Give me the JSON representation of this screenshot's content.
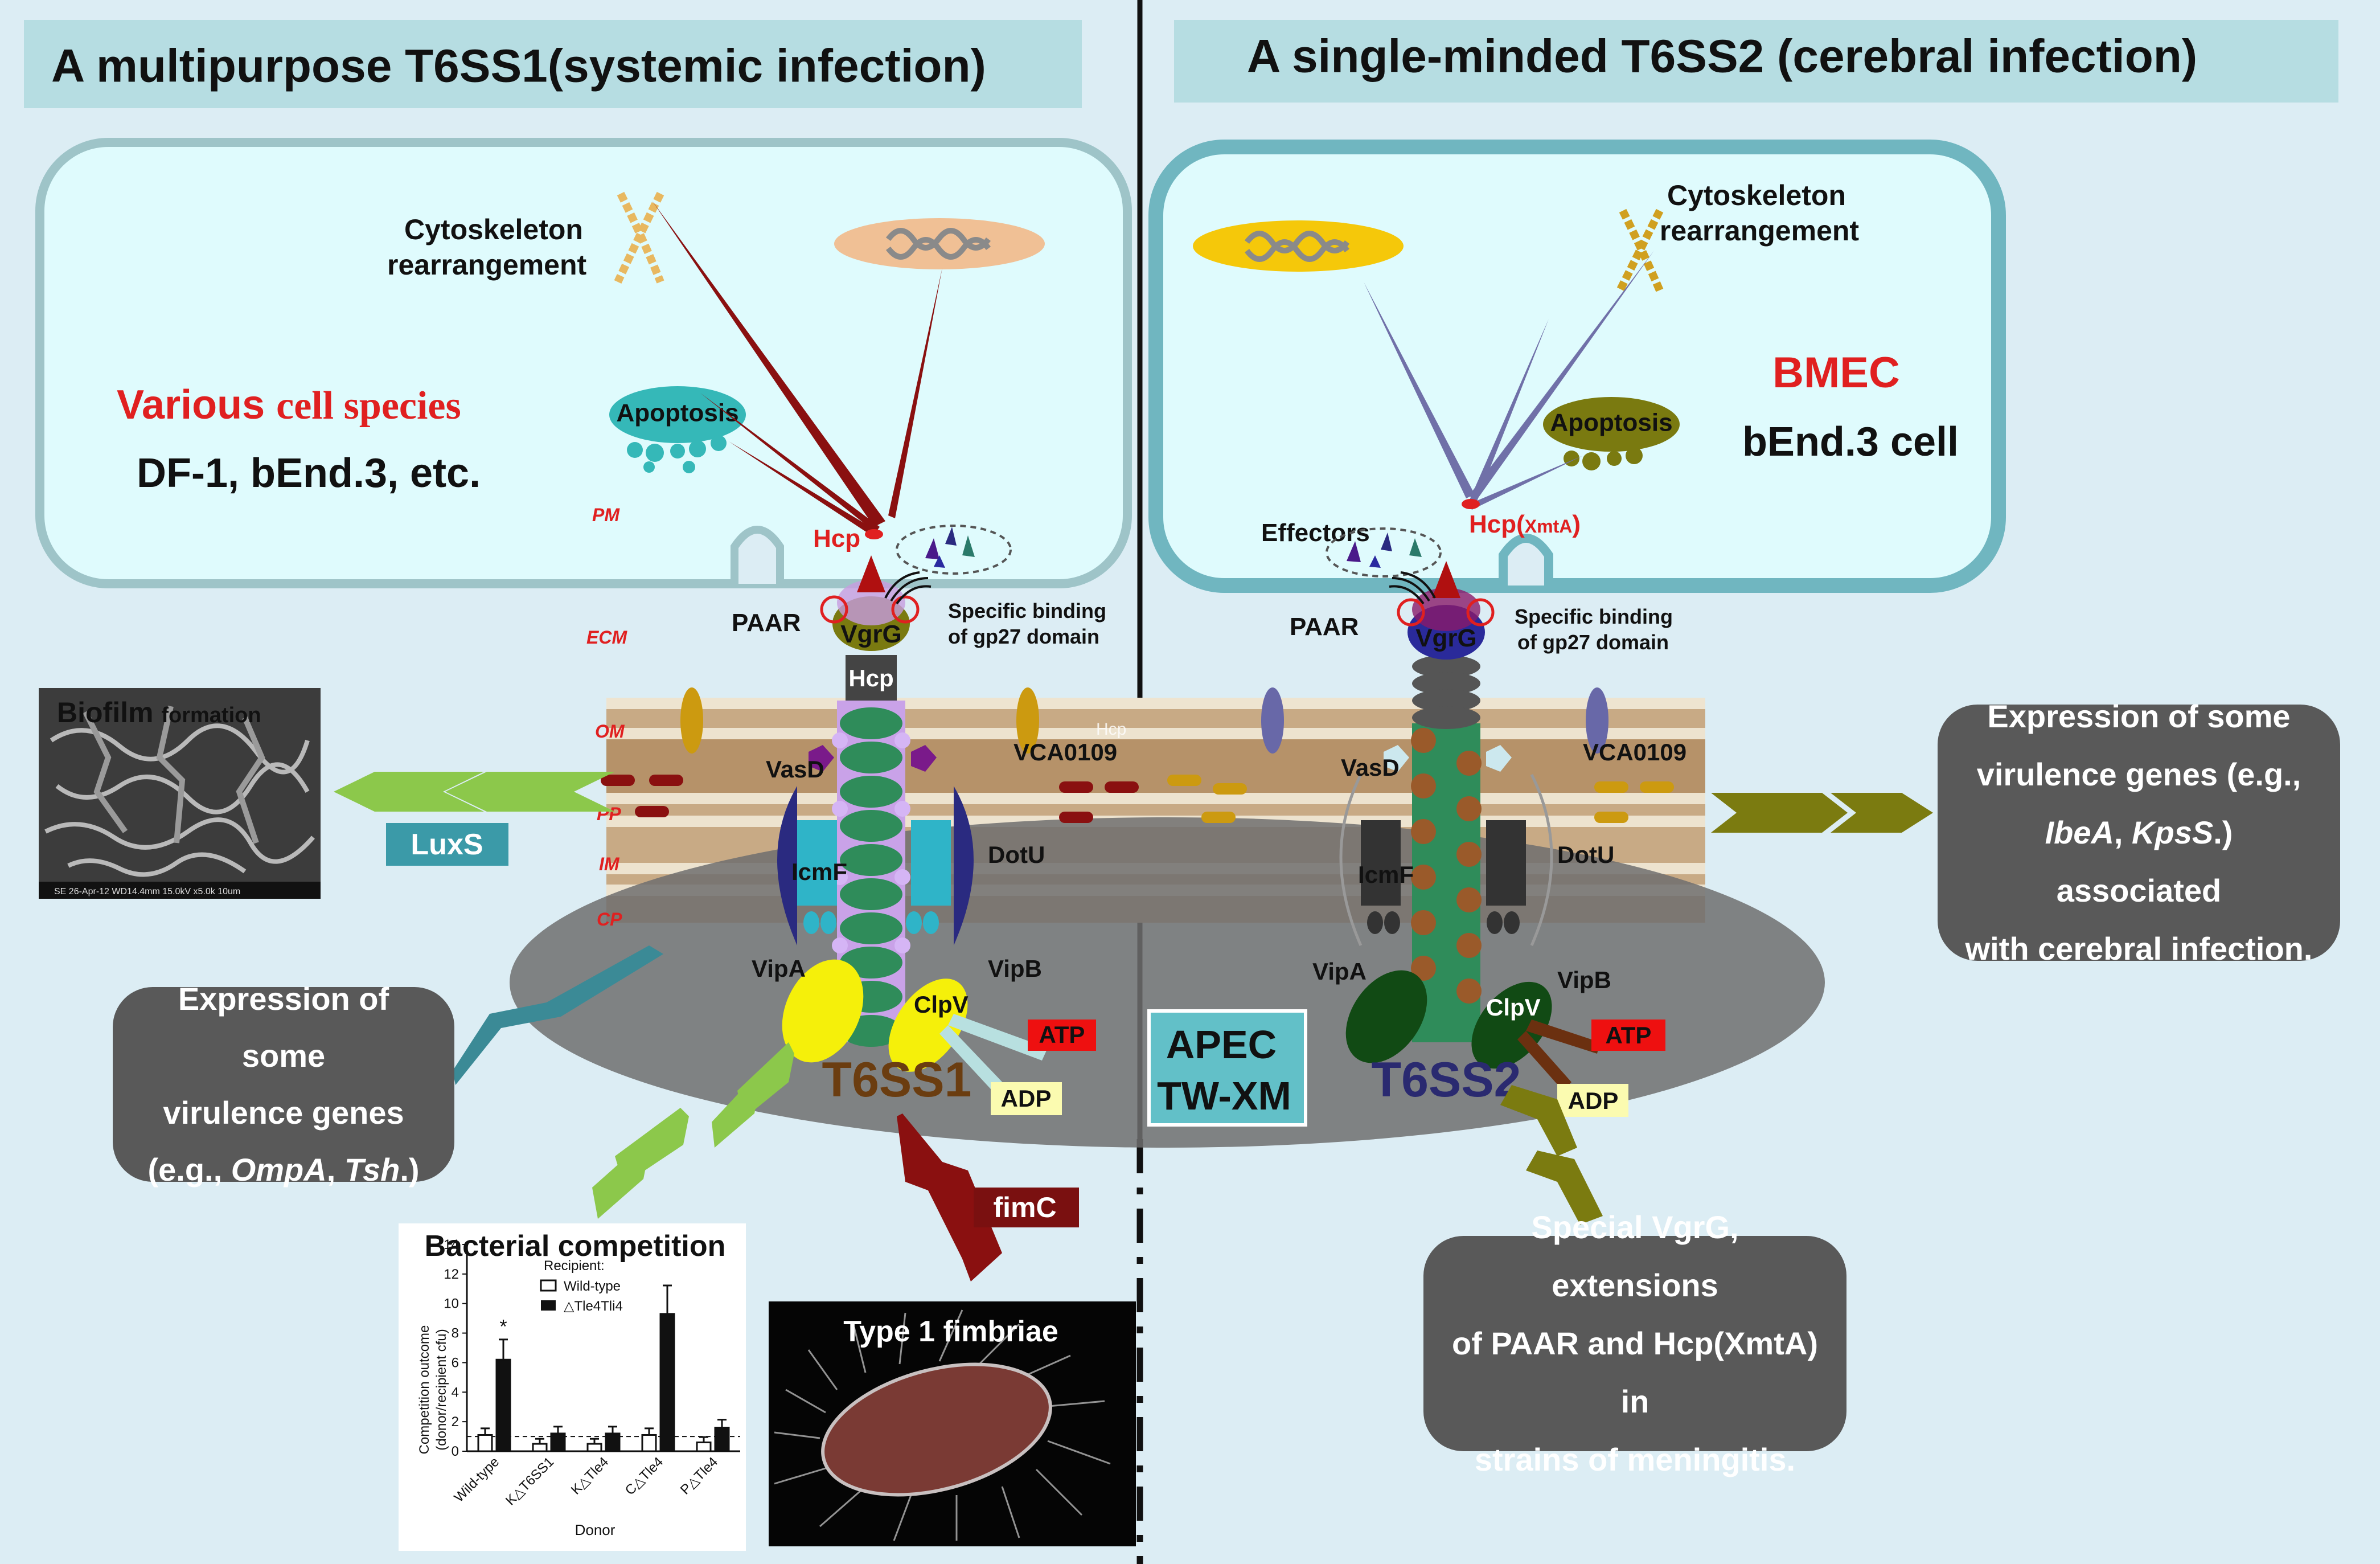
{
  "titles": {
    "left": "A  multipurpose T6SS1(systemic infection)",
    "right": "A  single-minded T6SS2 (cerebral infection)"
  },
  "left_cell": {
    "various": "Various",
    "cell_species": "cell species",
    "lines": "DF-1, bEnd.3, etc.",
    "cytoskeleton1": "Cytoskeleton",
    "cytoskeleton2": "rearrangement",
    "apoptosis": "Apoptosis",
    "hcp": "Hcp"
  },
  "right_cell": {
    "bmec": "BMEC",
    "bend": "bEnd.3 cell",
    "cytoskeleton1": "Cytoskeleton",
    "cytoskeleton2": "rearrangement",
    "apoptosis": "Apoptosis",
    "effectors": "Effectors",
    "hcp": "Hcp(",
    "hcp_sub": "XmtA",
    "hcp_close": ")"
  },
  "layers": {
    "pm": "PM",
    "ecm": "ECM",
    "om": "OM",
    "pp": "PP",
    "im": "IM",
    "cp": "CP"
  },
  "left_machine": {
    "paar": "PAAR",
    "vgrg": "VgrG",
    "hcp": "Hcp",
    "binding1": "Specific binding",
    "binding2": "of gp27 domain",
    "vasd": "VasD",
    "vca": "VCA0109",
    "icmf": "IcmF",
    "dotu": "DotU",
    "vipa": "VipA",
    "vipb": "VipB",
    "clpv": "ClpV",
    "atp": "ATP",
    "adp": "ADP",
    "name": "T6SS1",
    "hcp_faint": "Hcp"
  },
  "right_machine": {
    "paar": "PAAR",
    "vgrg": "VgrG",
    "binding1": "Specific binding",
    "binding2": "of gp27 domain",
    "vasd": "VasD",
    "vca": "VCA0109",
    "icmf": "IcmF",
    "dotu": "DotU",
    "vipa": "VipA",
    "vipb": "VipB",
    "clpv": "ClpV",
    "atp": "ATP",
    "adp": "ADP",
    "name": "T6SS2"
  },
  "strain": {
    "line1": "APEC",
    "line2": "TW-XM"
  },
  "biofilm": {
    "title": "Biofilm",
    "title2": "formation",
    "footer": "SE    26-Apr-12        WD14.4mm 15.0kV x5.0k  10um"
  },
  "luxs": "LuxS",
  "fimc": "fimC",
  "fimbriae": "Type 1 fimbriae",
  "left_box": {
    "l1": "Expression of  some",
    "l2": "virulence genes",
    "l3a": "(e.g., ",
    "l3b": "OmpA",
    "l3c": ", ",
    "l3d": "Tsh",
    "l3e": ".)"
  },
  "right_box": {
    "l1": "Expression of  some",
    "l2": "virulence genes (e.g.,",
    "l3a": "IbeA",
    "l3b": ", ",
    "l3c": "KpsS",
    "l3d": ".) associated",
    "l4": "with cerebral infection."
  },
  "bottom_box": {
    "l1": "Special VgrG, extensions",
    "l2": "of PAAR and Hcp(XmtA) in",
    "l3": "strains of meningitis."
  },
  "competition": {
    "title": "Bacterial competition",
    "recipient": "Recipient:",
    "legend1": "Wild-type",
    "legend2": "△Tle4Tli4",
    "ylabel1": "Competition outcome",
    "ylabel2": "(donor/recipient cfu)",
    "xlabel": "Donor",
    "star": "*",
    "yticks": [
      "0",
      "2",
      "4",
      "6",
      "8",
      "10",
      "12",
      "14"
    ]
  },
  "chart_data": {
    "type": "bar",
    "title": "Bacterial competition",
    "xlabel": "Donor",
    "ylabel": "Competition outcome (donor/recipient cfu)",
    "ylim": [
      0,
      14
    ],
    "legend_title": "Recipient:",
    "categories": [
      "Wild-type",
      "K△T6SS1",
      "K△Tle4",
      "C△Tle4",
      "P△Tle4"
    ],
    "series": [
      {
        "name": "Wild-type",
        "values": [
          1.1,
          0.5,
          0.5,
          1.1,
          0.6
        ]
      },
      {
        "name": "△Tle4Tli4",
        "values": [
          6.2,
          1.2,
          1.2,
          9.3,
          1.6
        ]
      }
    ]
  },
  "colors": {
    "background": "#dcedf4",
    "title_bar": "#b6dde2",
    "cell": "#dffbfd",
    "cell_border": "#9ec4c8",
    "red_text": "#e02020",
    "dark_red": "#8a1010",
    "green_arrow": "#8cc84b",
    "olive_arrow": "#7b7b10",
    "teal": "#3b9aa8",
    "t6ss1": "#6b3d10",
    "t6ss2": "#2a2a70"
  }
}
